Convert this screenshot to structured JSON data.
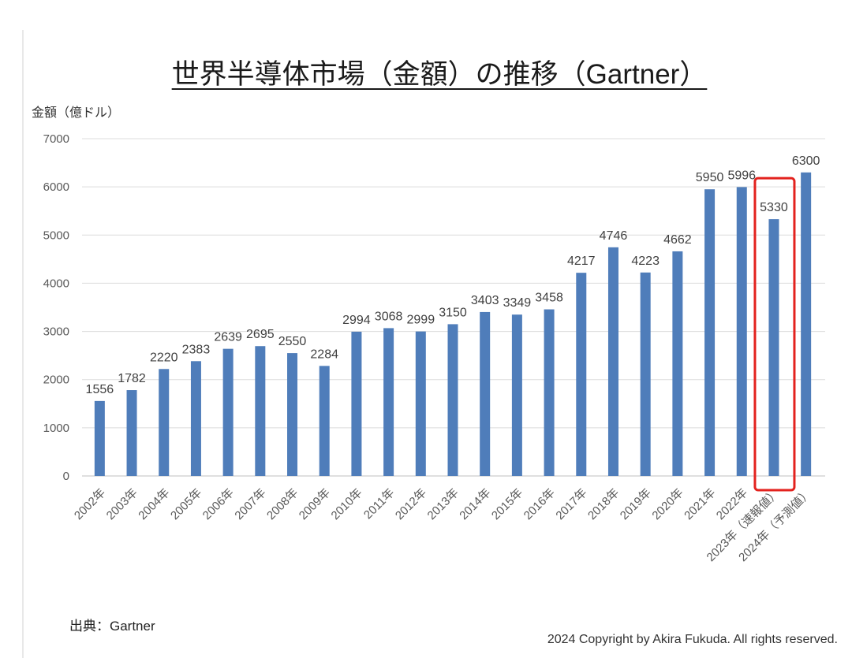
{
  "chart_data": {
    "type": "bar",
    "title": "世界半導体市場（金額）の推移（Gartner）",
    "ylabel": "金額（億ドル）",
    "xlabel": "",
    "categories": [
      "2002年",
      "2003年",
      "2004年",
      "2005年",
      "2006年",
      "2007年",
      "2008年",
      "2009年",
      "2010年",
      "2011年",
      "2012年",
      "2013年",
      "2014年",
      "2015年",
      "2016年",
      "2017年",
      "2018年",
      "2019年",
      "2020年",
      "2021年",
      "2022年",
      "2023年（速報値）",
      "2024年（予測値）"
    ],
    "values": [
      1556,
      1782,
      2220,
      2383,
      2639,
      2695,
      2550,
      2284,
      2994,
      3068,
      2999,
      3150,
      3403,
      3349,
      3458,
      4217,
      4746,
      4223,
      4662,
      5950,
      5996,
      5330,
      6300
    ],
    "ylim": [
      0,
      7000
    ],
    "yticks": [
      0,
      1000,
      2000,
      3000,
      4000,
      5000,
      6000,
      7000
    ],
    "grid": true,
    "data_labels": true,
    "bar_color": "#4F7DBA",
    "highlight": {
      "index": 21,
      "color": "#E3221E"
    }
  },
  "footer": {
    "source": "出典：Gartner",
    "copyright": "2024 Copyright by Akira Fukuda. All rights reserved."
  }
}
